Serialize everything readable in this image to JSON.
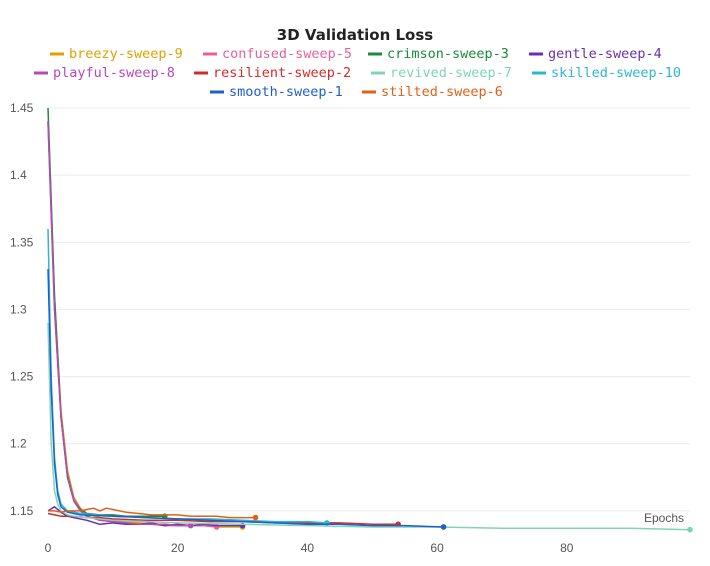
{
  "chart_data": {
    "type": "line",
    "title": "3D Validation Loss",
    "xlabel": "Epochs",
    "ylabel": "",
    "xlim": [
      0,
      99
    ],
    "ylim": [
      1.135,
      1.45
    ],
    "x_ticks": [
      0,
      20,
      40,
      60,
      80
    ],
    "y_ticks": [
      1.15,
      1.2,
      1.25,
      1.3,
      1.35,
      1.4,
      1.45
    ],
    "y_tick_labels": [
      "1.15",
      "1.2",
      "1.25",
      "1.3",
      "1.35",
      "1.4",
      "1.45"
    ],
    "grid": true,
    "legend_position": "top",
    "series": [
      {
        "name": "breezy-sweep-9",
        "color": "#e0a000",
        "x": [
          0,
          1,
          2,
          3,
          4,
          5,
          6,
          8,
          10,
          12,
          14,
          16,
          18,
          20,
          22,
          24,
          26,
          28,
          30
        ],
        "y": [
          1.44,
          1.31,
          1.225,
          1.18,
          1.16,
          1.152,
          1.148,
          1.145,
          1.143,
          1.142,
          1.141,
          1.14,
          1.14,
          1.139,
          1.139,
          1.139,
          1.138,
          1.138,
          1.138
        ]
      },
      {
        "name": "confused-sweep-5",
        "color": "#e8609a",
        "x": [
          0,
          1,
          2,
          3,
          4,
          5,
          6,
          8,
          10,
          12,
          14,
          16,
          18,
          20,
          22,
          24,
          26
        ],
        "y": [
          1.44,
          1.3,
          1.22,
          1.175,
          1.157,
          1.15,
          1.146,
          1.143,
          1.142,
          1.141,
          1.14,
          1.14,
          1.139,
          1.139,
          1.139,
          1.139,
          1.138
        ]
      },
      {
        "name": "crimson-sweep-3",
        "color": "#1a8a3c",
        "x": [
          0,
          1,
          2,
          3,
          4,
          5,
          6,
          8,
          10,
          12,
          14,
          16,
          18
        ],
        "y": [
          1.45,
          1.31,
          1.22,
          1.175,
          1.158,
          1.151,
          1.148,
          1.147,
          1.147,
          1.146,
          1.146,
          1.146,
          1.146
        ]
      },
      {
        "name": "gentle-sweep-4",
        "color": "#6a2fb0",
        "x": [
          0,
          1,
          2,
          3,
          4,
          6,
          8,
          10,
          12,
          14,
          16,
          18,
          20,
          22,
          24,
          26,
          28,
          30
        ],
        "y": [
          1.15,
          1.153,
          1.149,
          1.146,
          1.145,
          1.143,
          1.14,
          1.141,
          1.14,
          1.14,
          1.141,
          1.139,
          1.14,
          1.139,
          1.14,
          1.139,
          1.139,
          1.139
        ]
      },
      {
        "name": "playful-sweep-8",
        "color": "#b848b8",
        "x": [
          0,
          1,
          2,
          3,
          4,
          5,
          6,
          8,
          10,
          12,
          14,
          16,
          18,
          20,
          22
        ],
        "y": [
          1.44,
          1.3,
          1.22,
          1.177,
          1.158,
          1.15,
          1.146,
          1.143,
          1.142,
          1.141,
          1.14,
          1.14,
          1.14,
          1.139,
          1.139
        ]
      },
      {
        "name": "resilient-sweep-2",
        "color": "#d42a2a",
        "x": [
          0,
          1,
          2,
          4,
          6,
          8,
          10,
          15,
          20,
          25,
          30,
          35,
          40,
          45,
          50,
          54
        ],
        "y": [
          1.148,
          1.147,
          1.146,
          1.146,
          1.145,
          1.145,
          1.144,
          1.143,
          1.143,
          1.142,
          1.142,
          1.141,
          1.141,
          1.141,
          1.14,
          1.14
        ]
      },
      {
        "name": "revived-sweep-7",
        "color": "#7fd4b8",
        "x": [
          0,
          0.5,
          1,
          1.5,
          2,
          3,
          4,
          6,
          10,
          20,
          30,
          40,
          50,
          60,
          70,
          80,
          90,
          99
        ],
        "y": [
          1.29,
          1.2,
          1.165,
          1.155,
          1.15,
          1.147,
          1.146,
          1.145,
          1.143,
          1.141,
          1.14,
          1.139,
          1.138,
          1.138,
          1.137,
          1.137,
          1.137,
          1.136
        ]
      },
      {
        "name": "skilled-sweep-10",
        "color": "#2cb8cc",
        "x": [
          0,
          0.5,
          1,
          1.5,
          2,
          3,
          5,
          10,
          15,
          20,
          25,
          30,
          35,
          40,
          43
        ],
        "y": [
          1.36,
          1.25,
          1.19,
          1.165,
          1.155,
          1.15,
          1.148,
          1.146,
          1.145,
          1.144,
          1.144,
          1.143,
          1.142,
          1.142,
          1.141
        ]
      },
      {
        "name": "smooth-sweep-1",
        "color": "#1f5fcc",
        "x": [
          0,
          0.5,
          1,
          1.5,
          2,
          3,
          5,
          10,
          15,
          20,
          25,
          30,
          35,
          40,
          45,
          50,
          55,
          61
        ],
        "y": [
          1.33,
          1.24,
          1.185,
          1.162,
          1.153,
          1.149,
          1.147,
          1.146,
          1.145,
          1.144,
          1.143,
          1.142,
          1.141,
          1.14,
          1.14,
          1.139,
          1.139,
          1.138
        ]
      },
      {
        "name": "stilted-sweep-6",
        "color": "#e0601a",
        "x": [
          0,
          1,
          2,
          3,
          4,
          5,
          6,
          7,
          8,
          9,
          10,
          12,
          14,
          16,
          18,
          20,
          22,
          24,
          26,
          28,
          30,
          32
        ],
        "y": [
          1.15,
          1.15,
          1.149,
          1.15,
          1.15,
          1.15,
          1.151,
          1.152,
          1.15,
          1.152,
          1.151,
          1.149,
          1.148,
          1.147,
          1.147,
          1.147,
          1.146,
          1.146,
          1.146,
          1.145,
          1.145,
          1.145
        ]
      }
    ]
  }
}
